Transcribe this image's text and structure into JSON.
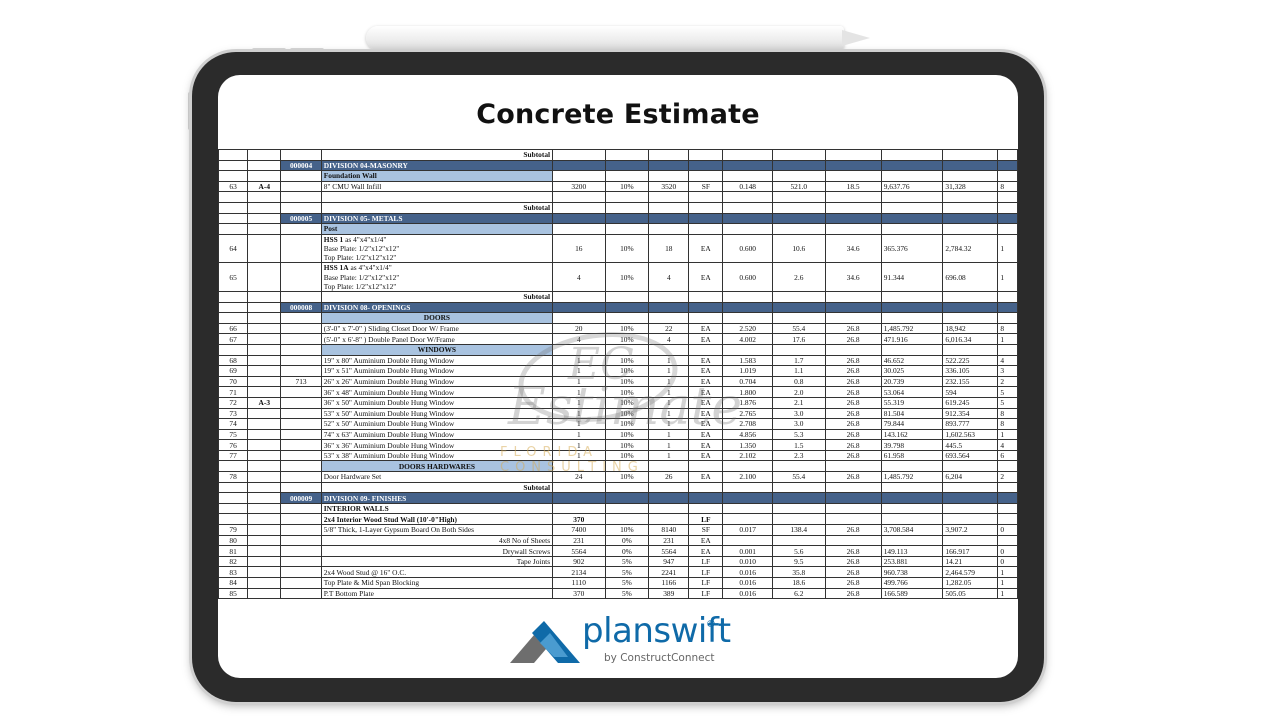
{
  "title": "Concrete Estimate",
  "colors": {
    "division_band": "#45628a",
    "section_band": "#a9c3e0",
    "logo_blue": "#0f6aa8"
  },
  "rows": [
    {
      "type": "subtotal_partial",
      "cells": [
        "",
        "",
        "",
        "Subtotal",
        "",
        "",
        "",
        "",
        "",
        "",
        "",
        "",
        "",
        ""
      ]
    },
    {
      "type": "division",
      "cells": [
        "",
        "",
        "000004",
        "DIVISION 04-MASONRY",
        "",
        "",
        "",
        "",
        "",
        "",
        "",
        "",
        "",
        ""
      ]
    },
    {
      "type": "section",
      "cells": [
        "",
        "",
        "",
        "Foundation Wall",
        "",
        "",
        "",
        "",
        "",
        "",
        "",
        "",
        "",
        ""
      ]
    },
    {
      "type": "item",
      "cells": [
        "63",
        "A-4",
        "",
        "8\" CMU Wall Infill",
        "3200",
        "10%",
        "3520",
        "SF",
        "0.148",
        "521.0",
        "18.5",
        "9,637.76",
        "31,328",
        "8"
      ]
    },
    {
      "type": "blank",
      "cells": [
        "",
        "",
        "",
        "",
        "",
        "",
        "",
        "",
        "",
        "",
        "",
        "",
        "",
        ""
      ]
    },
    {
      "type": "subtotal",
      "cells": [
        "",
        "",
        "",
        "Subtotal",
        "",
        "",
        "",
        "",
        "",
        "",
        "",
        "",
        "",
        ""
      ]
    },
    {
      "type": "division",
      "cells": [
        "",
        "",
        "000005",
        "DIVISION 05- METALS",
        "",
        "",
        "",
        "",
        "",
        "",
        "",
        "",
        "",
        ""
      ]
    },
    {
      "type": "section",
      "cells": [
        "",
        "",
        "",
        "Post",
        "",
        "",
        "",
        "",
        "",
        "",
        "",
        "",
        "",
        ""
      ]
    },
    {
      "type": "item3",
      "cells": [
        "64",
        "",
        "",
        "",
        "16",
        "10%",
        "18",
        "EA",
        "0.600",
        "10.6",
        "34.6",
        "365.376",
        "2,784.32",
        "1"
      ],
      "desc": {
        "bold": "HSS 1",
        "rest": "  as 4\"x4\"x1/4\"",
        "line2": "Base Plate: 1/2\"x12\"x12\"",
        "line3": "Top Plate: 1/2\"x12\"x12\""
      }
    },
    {
      "type": "item3",
      "cells": [
        "65",
        "",
        "",
        "",
        "4",
        "10%",
        "4",
        "EA",
        "0.600",
        "2.6",
        "34.6",
        "91.344",
        "696.08",
        "1"
      ],
      "desc": {
        "bold": "HSS 1A",
        "rest": "  as 4\"x4\"x1/4\"",
        "line2": "Base Plate: 1/2\"x12\"x12\"",
        "line3": "Top Plate: 1/2\"x12\"x12\""
      }
    },
    {
      "type": "subtotal",
      "cells": [
        "",
        "",
        "",
        "Subtotal",
        "",
        "",
        "",
        "",
        "",
        "",
        "",
        "",
        "",
        ""
      ]
    },
    {
      "type": "division",
      "cells": [
        "",
        "",
        "000008",
        "DIVISION 08- OPENINGS",
        "",
        "",
        "",
        "",
        "",
        "",
        "",
        "",
        "",
        ""
      ]
    },
    {
      "type": "section_center",
      "cells": [
        "",
        "",
        "",
        "DOORS",
        "",
        "",
        "",
        "",
        "",
        "",
        "",
        "",
        "",
        ""
      ]
    },
    {
      "type": "item",
      "cells": [
        "66",
        "",
        "",
        "(3'-0\" x 7'-0\" ) Sliding Closet Door W/ Frame",
        "20",
        "10%",
        "22",
        "EA",
        "2.520",
        "55.4",
        "26.8",
        "1,485.792",
        "18,942",
        "8"
      ]
    },
    {
      "type": "item",
      "cells": [
        "67",
        "",
        "",
        "(5'-0\" x 6'-8\" ) Double Panel Door W/Frame",
        "4",
        "10%",
        "4",
        "EA",
        "4.002",
        "17.6",
        "26.8",
        "471.916",
        "6,016.34",
        "1"
      ]
    },
    {
      "type": "section_center",
      "cells": [
        "",
        "",
        "",
        "WINDOWS",
        "",
        "",
        "",
        "",
        "",
        "",
        "",
        "",
        "",
        ""
      ]
    },
    {
      "type": "item",
      "cells": [
        "68",
        "",
        "",
        "19\" x 80\" Auminium Double Hung Window",
        "1",
        "10%",
        "1",
        "EA",
        "1.583",
        "1.7",
        "26.8",
        "46.652",
        "522.225",
        "4"
      ]
    },
    {
      "type": "item",
      "cells": [
        "69",
        "",
        "",
        "19\" x 51\" Auminium Double Hung Window",
        "1",
        "10%",
        "1",
        "EA",
        "1.019",
        "1.1",
        "26.8",
        "30.025",
        "336.105",
        "3"
      ]
    },
    {
      "type": "item",
      "cells": [
        "70",
        "",
        "713",
        "26\" x 26\" Auminium Double Hung Window",
        "1",
        "10%",
        "1",
        "EA",
        "0.704",
        "0.8",
        "26.8",
        "20.739",
        "232.155",
        "2"
      ]
    },
    {
      "type": "item",
      "cells": [
        "71",
        "",
        "",
        "36\" x 48\" Auminium Double Hung Window",
        "1",
        "10%",
        "1",
        "EA",
        "1.800",
        "2.0",
        "26.8",
        "53.064",
        "594",
        "5"
      ]
    },
    {
      "type": "item",
      "cells": [
        "72",
        "A-3",
        "",
        "36\" x 50\" Auminium Double Hung Window",
        "1",
        "10%",
        "1",
        "EA",
        "1.876",
        "2.1",
        "26.8",
        "55.319",
        "619.245",
        "5"
      ]
    },
    {
      "type": "item",
      "cells": [
        "73",
        "",
        "",
        "53\" x 50\" Auminium Double Hung Window",
        "1",
        "10%",
        "1",
        "EA",
        "2.765",
        "3.0",
        "26.8",
        "81.504",
        "912.354",
        "8"
      ]
    },
    {
      "type": "item",
      "cells": [
        "74",
        "",
        "",
        "52\" x 50\" Auminium Double Hung Window",
        "1",
        "10%",
        "1",
        "EA",
        "2.708",
        "3.0",
        "26.8",
        "79.844",
        "893.777",
        "8"
      ]
    },
    {
      "type": "item",
      "cells": [
        "75",
        "",
        "",
        "74\" x 63\" Auminium Double Hung Window",
        "1",
        "10%",
        "1",
        "EA",
        "4.856",
        "5.3",
        "26.8",
        "143.162",
        "1,602.563",
        "1"
      ]
    },
    {
      "type": "item",
      "cells": [
        "76",
        "",
        "",
        "36\" x 36\" Auminium Double Hung Window",
        "1",
        "10%",
        "1",
        "EA",
        "1.350",
        "1.5",
        "26.8",
        "39.798",
        "445.5",
        "4"
      ]
    },
    {
      "type": "item",
      "cells": [
        "77",
        "",
        "",
        "53\" x 38\" Auminium Double Hung Window",
        "1",
        "10%",
        "1",
        "EA",
        "2.102",
        "2.3",
        "26.8",
        "61.958",
        "693.564",
        "6"
      ]
    },
    {
      "type": "section_center",
      "cells": [
        "",
        "",
        "",
        "DOORS HARDWARES",
        "",
        "",
        "",
        "",
        "",
        "",
        "",
        "",
        "",
        ""
      ]
    },
    {
      "type": "item",
      "cells": [
        "78",
        "",
        "",
        "Door Hardware Set",
        "24",
        "10%",
        "26",
        "EA",
        "2.100",
        "55.4",
        "26.8",
        "1,485.792",
        "6,204",
        "2"
      ]
    },
    {
      "type": "subtotal",
      "cells": [
        "",
        "",
        "",
        "Subtotal",
        "",
        "",
        "",
        "",
        "",
        "",
        "",
        "",
        "",
        ""
      ]
    },
    {
      "type": "division",
      "cells": [
        "",
        "",
        "000009",
        "DIVISION 09- FINISHES",
        "",
        "",
        "",
        "",
        "",
        "",
        "",
        "",
        "",
        ""
      ]
    },
    {
      "type": "bold",
      "cells": [
        "",
        "",
        "",
        "INTERIOR WALLS",
        "",
        "",
        "",
        "",
        "",
        "",
        "",
        "",
        "",
        ""
      ]
    },
    {
      "type": "bold",
      "cells": [
        "",
        "",
        "",
        "2x4 Interior Wood Stud Wall  (10'-0\"High)",
        "370",
        "",
        "",
        "LF",
        "",
        "",
        "",
        "",
        "",
        ""
      ]
    },
    {
      "type": "item",
      "cells": [
        "79",
        "",
        "",
        "5/8\" Thick, 1-Layer Gypsum Board On Both Sides",
        "7400",
        "10%",
        "8140",
        "SF",
        "0.017",
        "138.4",
        "26.8",
        "3,708.584",
        "3,907.2",
        "0"
      ]
    },
    {
      "type": "item_right",
      "cells": [
        "80",
        "",
        "",
        "4x8 No of  Sheets",
        "231",
        "0%",
        "231",
        "EA",
        "",
        "",
        "",
        "",
        "",
        ""
      ]
    },
    {
      "type": "item_right",
      "cells": [
        "81",
        "",
        "",
        "Drywall Screws",
        "5564",
        "0%",
        "5564",
        "EA",
        "0.001",
        "5.6",
        "26.8",
        "149.113",
        "166.917",
        "0"
      ]
    },
    {
      "type": "item_right",
      "cells": [
        "82",
        "",
        "",
        "Tape Joints",
        "902",
        "5%",
        "947",
        "LF",
        "0.010",
        "9.5",
        "26.8",
        "253.881",
        "14.21",
        "0"
      ]
    },
    {
      "type": "item",
      "cells": [
        "83",
        "",
        "",
        "2x4 Wood Stud @ 16\" O.C.",
        "2134",
        "5%",
        "2241",
        "LF",
        "0.016",
        "35.8",
        "26.8",
        "960.738",
        "2,464.579",
        "1"
      ]
    },
    {
      "type": "item",
      "cells": [
        "84",
        "",
        "",
        "Top Plate & Mid Span Blocking",
        "1110",
        "5%",
        "1166",
        "LF",
        "0.016",
        "18.6",
        "26.8",
        "499.766",
        "1,282.05",
        "1"
      ]
    },
    {
      "type": "item",
      "cells": [
        "85",
        "",
        "",
        "P.T Bottom Plate",
        "370",
        "5%",
        "389",
        "LF",
        "0.016",
        "6.2",
        "26.8",
        "166.589",
        "505.05",
        "1"
      ]
    }
  ],
  "watermark": {
    "monogram": "EC",
    "name": "Estimate",
    "subtitle": "FLORIDA CONSULTING"
  },
  "logo": {
    "name": "planswift",
    "registered": "®",
    "byline": "by ConstructConnect"
  }
}
